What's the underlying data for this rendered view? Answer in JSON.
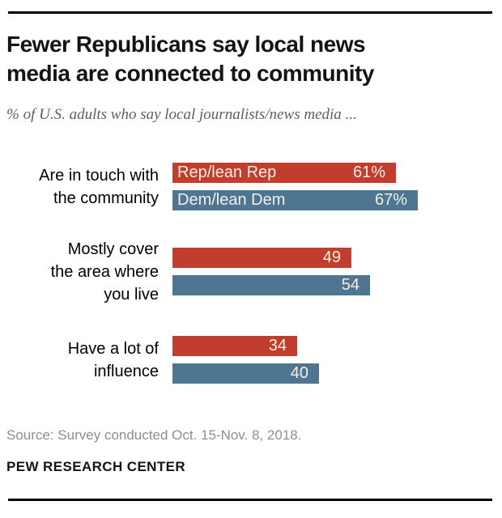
{
  "header": {
    "title_line1": "Fewer Republicans say local news",
    "title_line2": "media are connected to community",
    "subtitle": "% of U.S. adults who say local journalists/news media ..."
  },
  "chart_data": {
    "type": "bar",
    "orientation": "horizontal",
    "unit": "%",
    "xlim": [
      0,
      100
    ],
    "grid": false,
    "legend_position": "inside-first-bar-group",
    "categories": [
      "Are in touch with the community",
      "Mostly cover the area where you live",
      "Have a lot of influence"
    ],
    "category_lines": [
      [
        "Are in touch with",
        "the community"
      ],
      [
        "Mostly cover",
        "the area where",
        "you live"
      ],
      [
        "Have a lot of",
        "influence"
      ]
    ],
    "series": [
      {
        "name": "Rep/lean Rep",
        "color": "#c13d2d",
        "values": [
          61,
          49,
          34
        ],
        "value_labels": [
          "61%",
          "49",
          "34"
        ]
      },
      {
        "name": "Dem/lean Dem",
        "color": "#4e7591",
        "values": [
          67,
          54,
          40
        ],
        "value_labels": [
          "67%",
          "54",
          "40"
        ]
      }
    ]
  },
  "footer": {
    "source": "Source: Survey conducted Oct. 15-Nov. 8, 2018.",
    "brand": "PEW RESEARCH CENTER"
  },
  "colors": {
    "republican_bar": "#c13d2d",
    "democrat_bar": "#4e7591",
    "bar_label_text": "#f6efe3",
    "title_text": "#141414",
    "subtitle_text": "#5e5e5e",
    "source_text": "#8e8e8e",
    "rule": "#000000"
  }
}
